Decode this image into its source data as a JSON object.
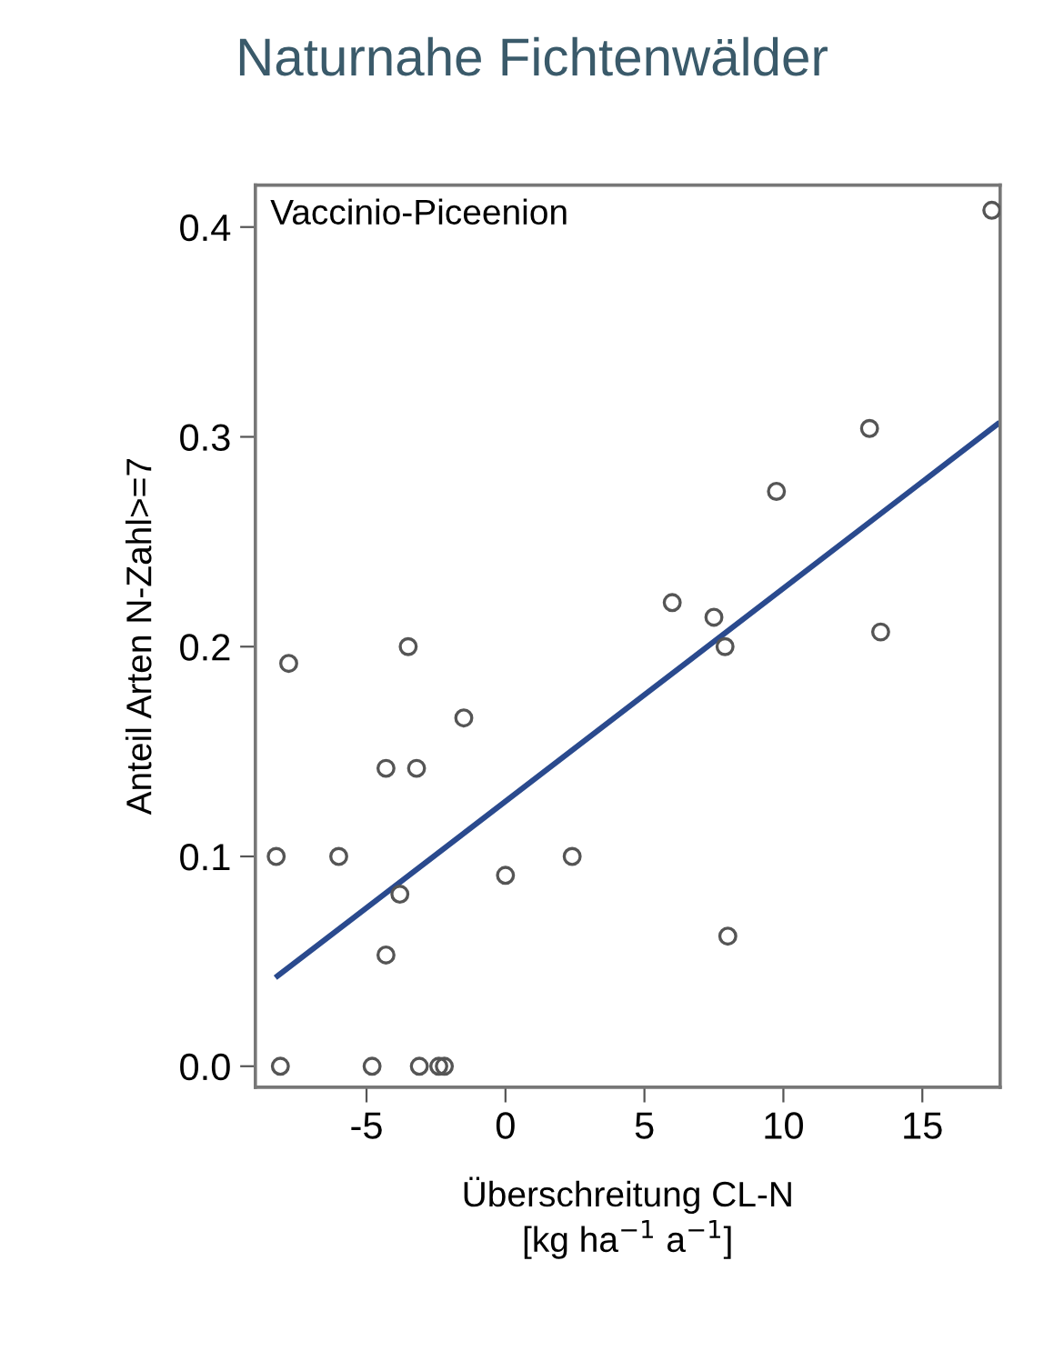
{
  "chart_data": {
    "type": "scatter",
    "title": "Naturnahe Fichtenwälder",
    "xlabel": "Überschreitung CL-N\n[kg ha$^{−1}$ a$^{−1}$]",
    "ylabel": "Anteil Arten N-Zahl>=7",
    "annotations": [
      "Vaccinio-Piceenion"
    ],
    "xlim": [
      -9.0,
      17.8
    ],
    "ylim": [
      -0.01,
      0.42
    ],
    "xticks": [
      -5,
      0,
      5,
      10,
      15
    ],
    "yticks": [
      {
        "value": 0,
        "label": "0.0"
      },
      {
        "value": 0.1,
        "label": "0.1"
      },
      {
        "value": 0.2,
        "label": "0.2"
      },
      {
        "value": 0.3,
        "label": "0.3"
      },
      {
        "value": 0.4,
        "label": "0.4"
      }
    ],
    "grid": false,
    "series": [
      {
        "marker": "circle",
        "color": "#555555",
        "x": [
          17.5,
          13.1,
          9.75,
          13.5,
          6.0,
          7.5,
          7.9,
          -7.8,
          -3.5,
          -1.5,
          -4.3,
          -3.2,
          -8.25,
          -6.0,
          0,
          2.4,
          -3.8,
          -4.3,
          8.0,
          -8.1,
          -4.8,
          -3.1,
          -2.4,
          -2.2
        ],
        "values": [
          0.408,
          0.304,
          0.274,
          0.207,
          0.221,
          0.214,
          0.2,
          0.192,
          0.2,
          0.166,
          0.142,
          0.142,
          0.1,
          0.1,
          0.091,
          0.1,
          0.082,
          0.053,
          0.062,
          0,
          0,
          0,
          0,
          0
        ]
      },
      {
        "type": "line",
        "color": "#2a4a8e",
        "x": [
          -8.2,
          17.7
        ],
        "values": [
          0.043,
          0.306
        ]
      }
    ]
  }
}
